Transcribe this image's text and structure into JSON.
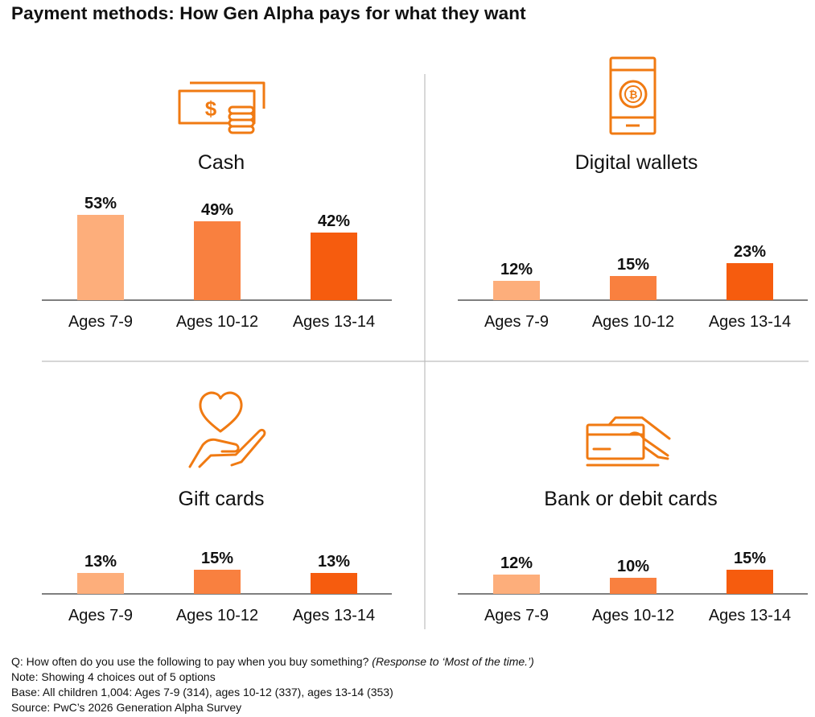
{
  "title": "Payment methods: How Gen Alpha pays for what they want",
  "colors": {
    "age_7_9": "#FDAE7B",
    "age_10_12": "#F9803F",
    "age_13_14": "#F65C0E",
    "icon": "#F07A12",
    "divider": "#BDBDBD"
  },
  "chart_data": [
    {
      "type": "bar",
      "title": "Cash",
      "icon": "cash-icon",
      "categories": [
        "Ages 7-9",
        "Ages 10-12",
        "Ages 13-14"
      ],
      "values": [
        53,
        49,
        42
      ],
      "labels": [
        "53%",
        "49%",
        "42%"
      ],
      "ylim": [
        0,
        60
      ],
      "unit": "%"
    },
    {
      "type": "bar",
      "title": "Digital wallets",
      "icon": "phone-wallet-icon",
      "categories": [
        "Ages 7-9",
        "Ages 10-12",
        "Ages 13-14"
      ],
      "values": [
        12,
        15,
        23
      ],
      "labels": [
        "12%",
        "15%",
        "23%"
      ],
      "ylim": [
        0,
        60
      ],
      "unit": "%"
    },
    {
      "type": "bar",
      "title": "Gift cards",
      "icon": "heart-hand-icon",
      "categories": [
        "Ages 7-9",
        "Ages 10-12",
        "Ages 13-14"
      ],
      "values": [
        13,
        15,
        13
      ],
      "labels": [
        "13%",
        "15%",
        "13%"
      ],
      "ylim": [
        0,
        60
      ],
      "unit": "%"
    },
    {
      "type": "bar",
      "title": "Bank or debit cards",
      "icon": "card-hand-icon",
      "categories": [
        "Ages 7-9",
        "Ages 10-12",
        "Ages 13-14"
      ],
      "values": [
        12,
        10,
        15
      ],
      "labels": [
        "12%",
        "10%",
        "15%"
      ],
      "ylim": [
        0,
        60
      ],
      "unit": "%"
    }
  ],
  "footnotes": {
    "question": "Q: How often do you use the following to pay when you buy something?",
    "question_response": "(Response to ‘Most of the time.’)",
    "note": "Note: Showing 4 choices out of 5 options",
    "base": "Base: All children 1,004: Ages 7-9 (314), ages 10-12 (337), ages 13-14 (353)",
    "source": "Source: PwC’s 2026 Generation Alpha Survey"
  }
}
